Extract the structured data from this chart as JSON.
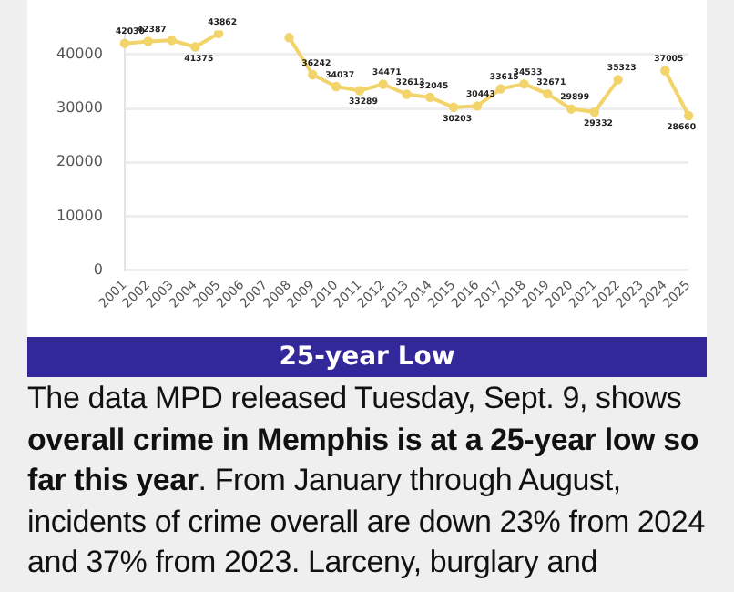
{
  "chart_data": {
    "type": "line",
    "categories": [
      "2001",
      "2002",
      "2003",
      "2004",
      "2005",
      "2006",
      "2007",
      "2008",
      "2009",
      "2010",
      "2011",
      "2012",
      "2013",
      "2014",
      "2015",
      "2016",
      "2017",
      "2018",
      "2019",
      "2020",
      "2021",
      "2022",
      "2023",
      "2024",
      "2025"
    ],
    "series": [
      {
        "color": "#f2d46b",
        "values": [
          42030,
          42387,
          42600,
          41375,
          43862,
          null,
          null,
          43100,
          36242,
          34037,
          33289,
          34471,
          32613,
          32045,
          30203,
          30443,
          33615,
          34533,
          32671,
          29899,
          29332,
          35323,
          null,
          37005,
          28660
        ],
        "value_labels": [
          "42030",
          "42387",
          null,
          "41375",
          "43862",
          null,
          null,
          null,
          "36242",
          "34037",
          "33289",
          "34471",
          "32613",
          "32045",
          "30203",
          "30443",
          "33615",
          "34533",
          "32671",
          "29899",
          "29332",
          "35323",
          null,
          "37005",
          "28660"
        ]
      }
    ],
    "ylim": [
      0,
      44400
    ],
    "yticks": [
      0,
      10000,
      20000,
      30000,
      40000
    ],
    "grid": "y",
    "legend": false,
    "marker": "circle",
    "annotations": [
      "25-year Low",
      "The data MPD released Tuesday, Sept. 9, shows ",
      "overall crime in Memphis is at a 25-year low so far this year",
      ". From January through August, incidents of crime overall are down 23% from 2024 and 37% from 2023. Larceny, burglary and"
    ]
  }
}
